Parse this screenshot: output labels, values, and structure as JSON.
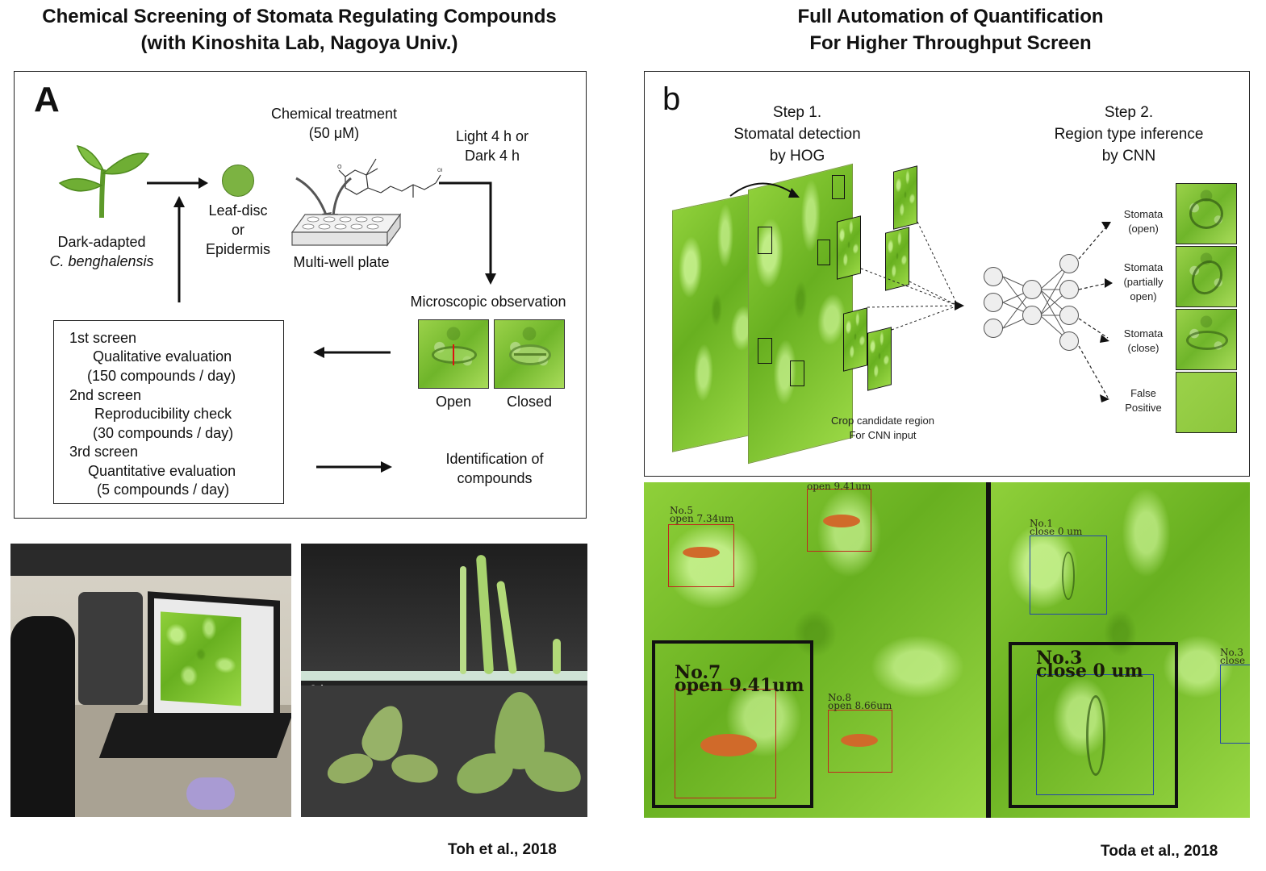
{
  "left": {
    "title_line1": "Chemical Screening of Stomata Regulating Compounds",
    "title_line2": "(with Kinoshita Lab, Nagoya Univ.)",
    "panel_letter": "A",
    "chemical_treatment": "Chemical treatment",
    "concentration": "(50 μM)",
    "light_dark_line1": "Light 4 h or",
    "light_dark_line2": "Dark 4 h",
    "dark_adapted": "Dark-adapted",
    "species": "C. benghalensis",
    "leaf_disc_line1": "Leaf-disc",
    "leaf_disc_line2": "or",
    "leaf_disc_line3": "Epidermis",
    "multiwell": "Multi-well plate",
    "microscopic": "Microscopic observation",
    "open": "Open",
    "closed": "Closed",
    "screens": [
      {
        "name": "1st screen",
        "detail": "Qualitative evaluation",
        "rate": "(150 compounds / day)"
      },
      {
        "name": "2nd screen",
        "detail": "Reproducibility check",
        "rate": "(30 compounds / day)"
      },
      {
        "name": "3rd screen",
        "detail": "Quantitative evaluation",
        "rate": "(5 compounds / day)"
      }
    ],
    "identification_line1": "Identification of",
    "identification_line2": "compounds",
    "photo_time": "6 h",
    "citation": "Toh et al., 2018"
  },
  "right": {
    "title_line1": "Full Automation of Quantification",
    "title_line2": "For Higher Throughput Screen",
    "panel_letter": "b",
    "step1_line1": "Step 1.",
    "step1_line2": "Stomatal detection",
    "step1_line3": "by HOG",
    "step2_line1": "Step 2.",
    "step2_line2": "Region type inference",
    "step2_line3": "by CNN",
    "crop_line1": "Crop candidate region",
    "crop_line2": "For CNN input",
    "classes": [
      {
        "line1": "Stomata",
        "line2": "(open)",
        "line3": ""
      },
      {
        "line1": "Stomata",
        "line2": "(partially",
        "line3": "open)"
      },
      {
        "line1": "Stomata",
        "line2": "(close)",
        "line3": ""
      },
      {
        "line1": "False",
        "line2": "Positive",
        "line3": ""
      }
    ],
    "detections_left": [
      {
        "id": "No.5",
        "label": "open  7.34um"
      },
      {
        "id": "",
        "label": "open  9.41um"
      },
      {
        "id": "No.7",
        "label": "open  9.41um"
      },
      {
        "id": "No.8",
        "label": "open  8.66um"
      }
    ],
    "detections_right": [
      {
        "id": "No.1",
        "label": "close  0  um"
      },
      {
        "id": "No.3",
        "label": "close  0  um"
      },
      {
        "id": "No.3",
        "label": "close"
      }
    ],
    "citation": "Toda et al., 2018"
  }
}
